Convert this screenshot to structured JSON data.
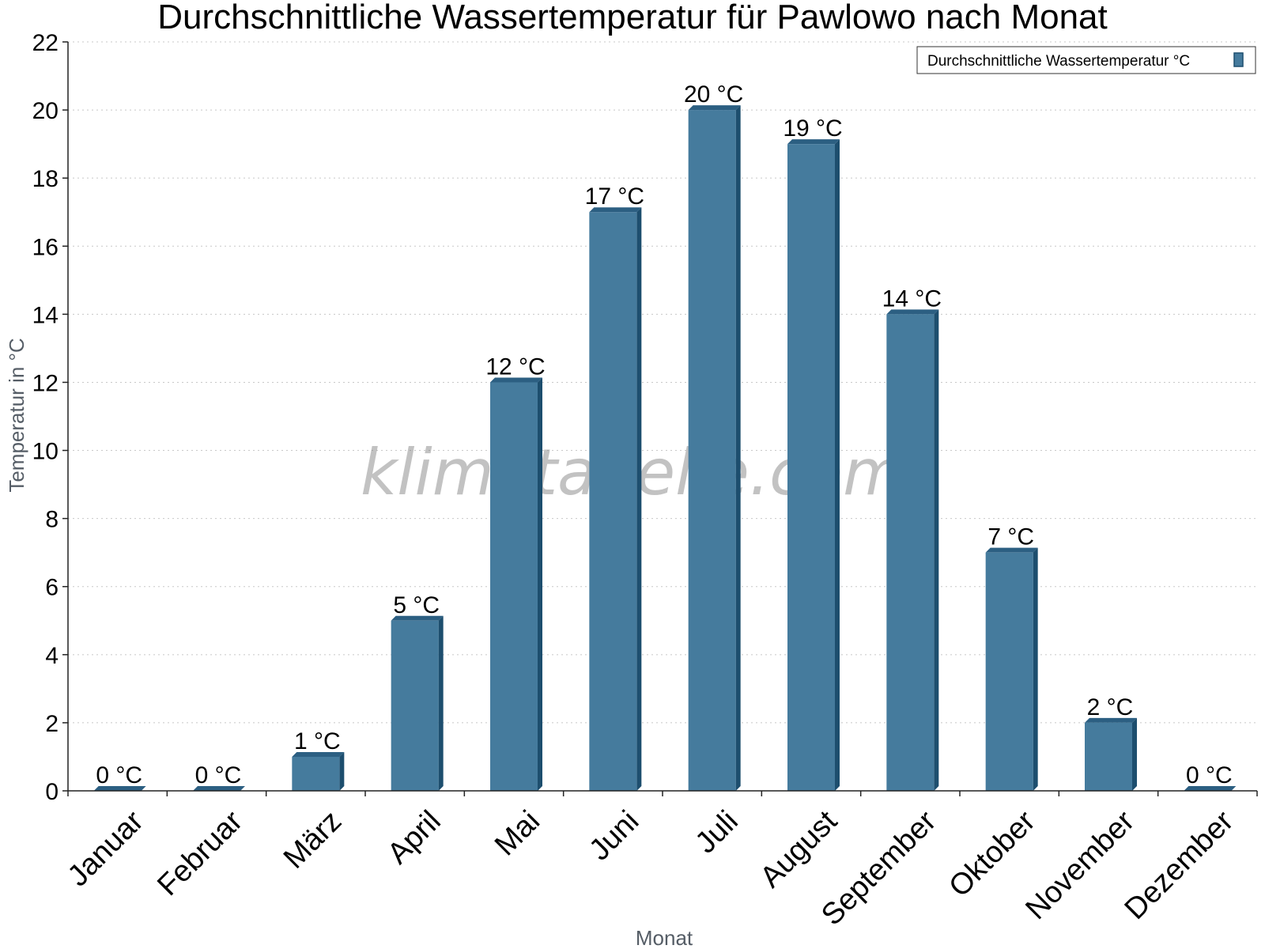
{
  "chart_data": {
    "type": "bar",
    "title": "Durchschnittliche Wassertemperatur für Pawlowo nach Monat",
    "xlabel": "Monat",
    "ylabel": "Temperatur in °C",
    "categories": [
      "Januar",
      "Februar",
      "März",
      "April",
      "Mai",
      "Juni",
      "Juli",
      "August",
      "September",
      "Oktober",
      "November",
      "Dezember"
    ],
    "series": [
      {
        "name": "Durchschnittliche Wassertemperatur °C",
        "values": [
          0,
          0,
          1,
          5,
          12,
          17,
          20,
          19,
          14,
          7,
          2,
          0
        ],
        "labels": [
          "0 °C",
          "0 °C",
          "1 °C",
          "5 °C",
          "12 °C",
          "17 °C",
          "20 °C",
          "19 °C",
          "14 °C",
          "7 °C",
          "2 °C",
          "0 °C"
        ]
      }
    ],
    "ylim": [
      0,
      22
    ],
    "yticks": [
      0,
      2,
      4,
      6,
      8,
      10,
      12,
      14,
      16,
      18,
      20,
      22
    ],
    "grid": true,
    "legend_position": "top-right",
    "colors": {
      "bar": "#457b9d",
      "bar_side": "#1d4e6e",
      "bar_top": "#2c5f82"
    }
  },
  "watermark": "klimatabelle.com"
}
